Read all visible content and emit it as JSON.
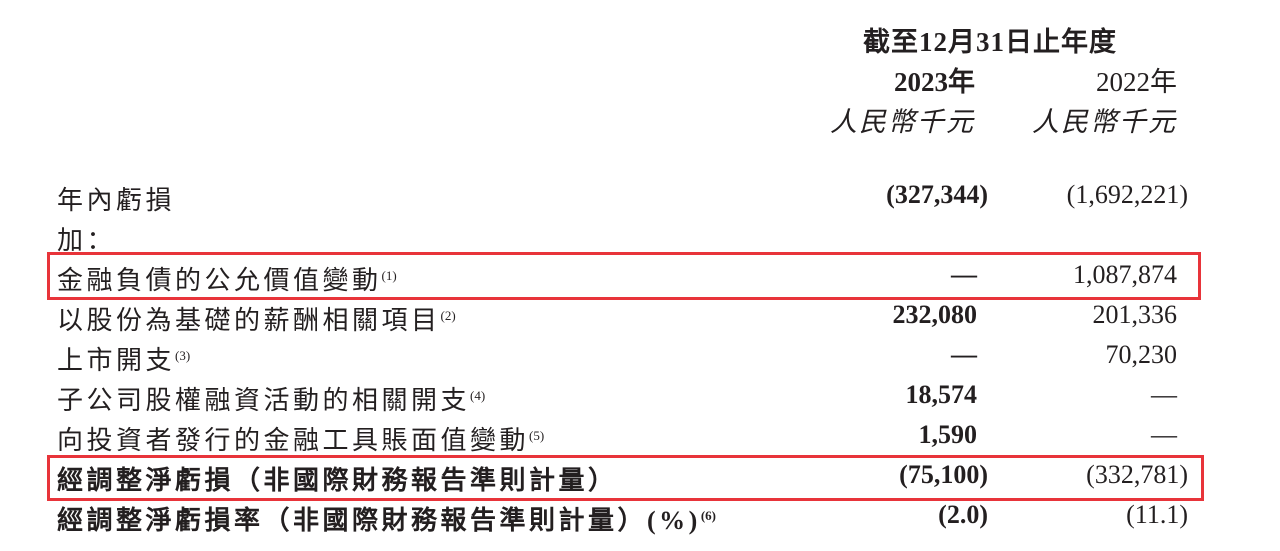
{
  "header": {
    "period": "截至12月31日止年度",
    "year_2023": "2023年",
    "year_2022": "2022年",
    "unit_2023": "人民幣千元",
    "unit_2022": "人民幣千元"
  },
  "rows": [
    {
      "label": "年內虧損",
      "note": "",
      "v2023": "(327,344)",
      "v2022": "(1,692,221)"
    },
    {
      "label": "加：",
      "note": "",
      "v2023": "",
      "v2022": ""
    },
    {
      "label": "金融負債的公允價值變動",
      "note": "(1)",
      "v2023": "—",
      "v2022": "1,087,874"
    },
    {
      "label": "以股份為基礎的薪酬相關項目",
      "note": "(2)",
      "v2023": "232,080",
      "v2022": "201,336"
    },
    {
      "label": "上市開支",
      "note": "(3)",
      "v2023": "—",
      "v2022": "70,230"
    },
    {
      "label": "子公司股權融資活動的相關開支",
      "note": "(4)",
      "v2023": "18,574",
      "v2022": "—"
    },
    {
      "label": "向投資者發行的金融工具賬面值變動",
      "note": "(5)",
      "v2023": "1,590",
      "v2022": "—"
    },
    {
      "label": "經調整淨虧損（非國際財務報告準則計量）",
      "note": "",
      "v2023": "(75,100)",
      "v2022": "(332,781)"
    },
    {
      "label": "經調整淨虧損率（非國際財務報告準則計量）(%)",
      "note": "(6)",
      "v2023": "(2.0)",
      "v2022": "(11.1)"
    }
  ],
  "highlight_color": "#e8343a"
}
